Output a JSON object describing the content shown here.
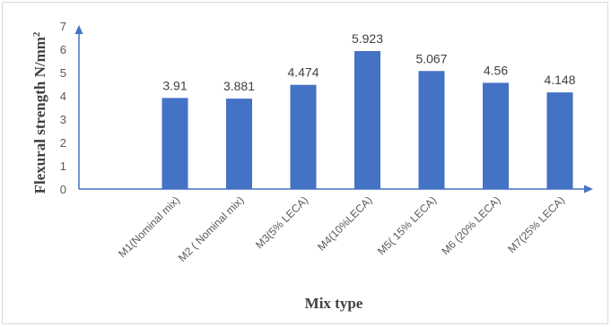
{
  "chart_data": {
    "type": "bar",
    "categories": [
      "M1(Nominal mix)",
      "M2 ( Nominal mix)",
      "M3(5% LECA)",
      "M4(10%LECA)",
      "M5( 15% LECA)",
      "M6 (20% LECA)",
      "M7(25% LECA)"
    ],
    "values": [
      3.91,
      3.881,
      4.474,
      5.923,
      5.067,
      4.56,
      4.148
    ],
    "value_labels": [
      "3.91",
      "3.881",
      "4.474",
      "5.923",
      "5.067",
      "4.56",
      "4.148"
    ],
    "title": "",
    "xlabel": "Mix type",
    "ylabel": "Flexural strength N/mm²",
    "ylim": [
      0,
      7
    ],
    "yticks": [
      "0",
      "1",
      "2",
      "3",
      "4",
      "5",
      "6",
      "7"
    ],
    "grid": false,
    "bar_color": "#4472c4",
    "axis_color": "#4472c4"
  }
}
